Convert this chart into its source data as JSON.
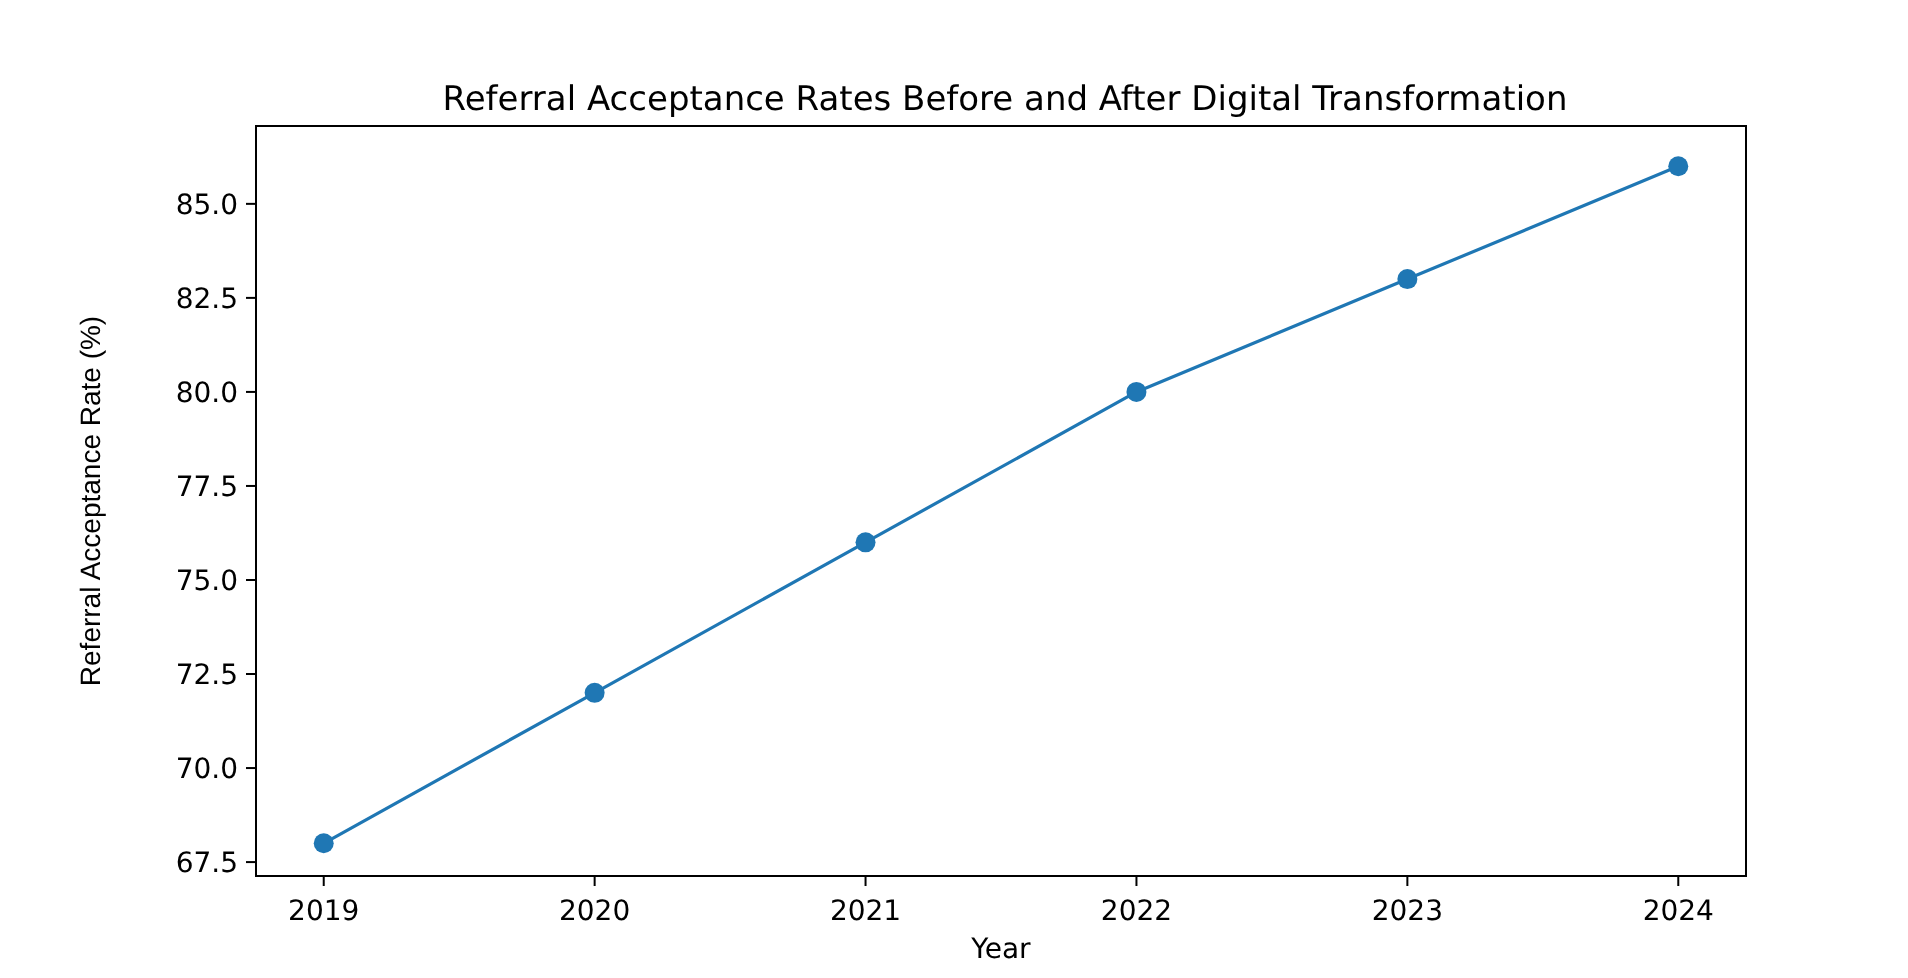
{
  "chart_data": {
    "type": "line",
    "title": "Referral Acceptance Rates Before and After Digital Transformation",
    "xlabel": "Year",
    "ylabel": "Referral Acceptance Rate (%)",
    "x": [
      2019,
      2020,
      2021,
      2022,
      2023,
      2024
    ],
    "series": [
      {
        "color": "#1f77b4",
        "values": [
          68,
          72,
          76,
          80,
          83,
          86
        ]
      }
    ],
    "marker": "circle",
    "line_style": "solid",
    "xlim": [
      2018.75,
      2024.25
    ],
    "xticks": [
      2019,
      2020,
      2021,
      2022,
      2023,
      2024
    ],
    "ylim": [
      67.13,
      87.07
    ],
    "yticks": [
      {
        "value": 67.5,
        "label": "67.5"
      },
      {
        "value": 70,
        "label": "70.0"
      },
      {
        "value": 72.5,
        "label": "72.5"
      },
      {
        "value": 75,
        "label": "75.0"
      },
      {
        "value": 77.5,
        "label": "77.5"
      },
      {
        "value": 80,
        "label": "80.0"
      },
      {
        "value": 82.5,
        "label": "82.5"
      },
      {
        "value": 85,
        "label": "85.0"
      }
    ]
  }
}
